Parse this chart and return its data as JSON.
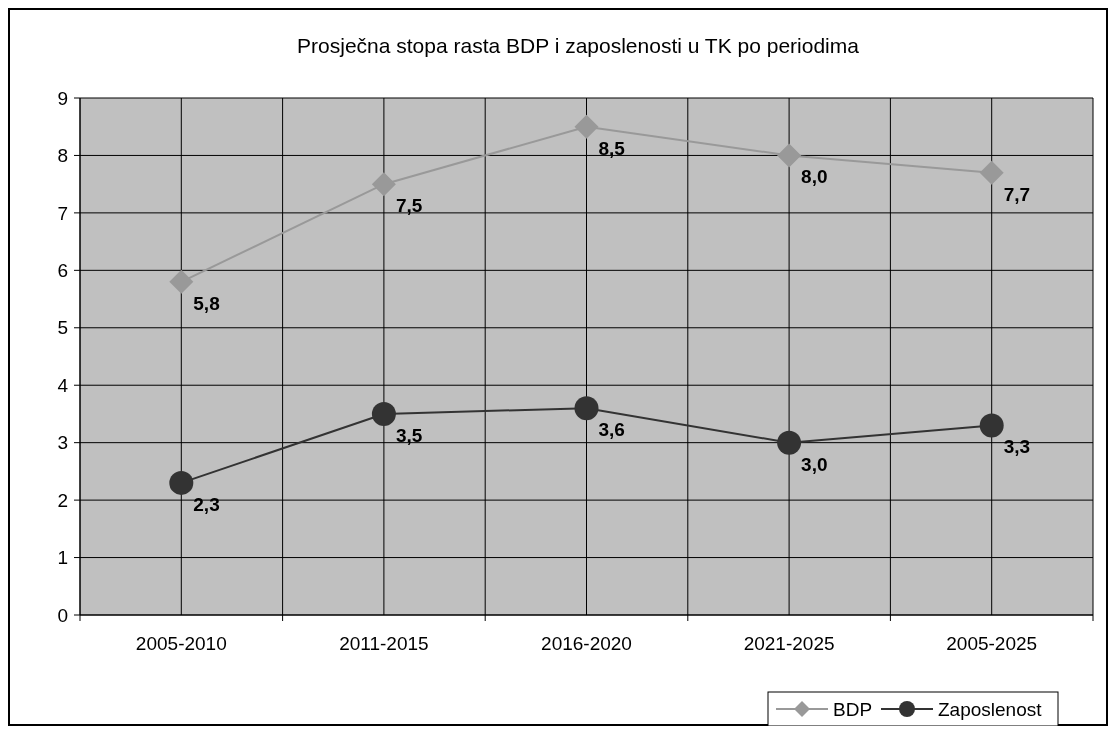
{
  "chart_data": {
    "type": "line",
    "title": "Prosječna stopa rasta BDP i zaposlenosti u TK po periodima",
    "categories": [
      "2005-2010",
      "2011-2015",
      "2016-2020",
      "2021-2025",
      "2005-2025"
    ],
    "series": [
      {
        "name": "BDP",
        "color": "#999999",
        "marker": "diamond",
        "values": [
          5.8,
          7.5,
          8.5,
          8.0,
          7.7
        ],
        "value_labels": [
          "5,8",
          "7,5",
          "8,5",
          "8,0",
          "7,7"
        ]
      },
      {
        "name": "Zaposlenost",
        "color": "#333333",
        "marker": "circle",
        "values": [
          2.3,
          3.5,
          3.6,
          3.0,
          3.3
        ],
        "value_labels": [
          "2,3",
          "3,5",
          "3,6",
          "3,0",
          "3,3"
        ]
      }
    ],
    "ylim": [
      0,
      9
    ],
    "yticks": [
      0,
      1,
      2,
      3,
      4,
      5,
      6,
      7,
      8,
      9
    ],
    "grid": true,
    "legend": "bottom right",
    "line_style": "solid"
  }
}
